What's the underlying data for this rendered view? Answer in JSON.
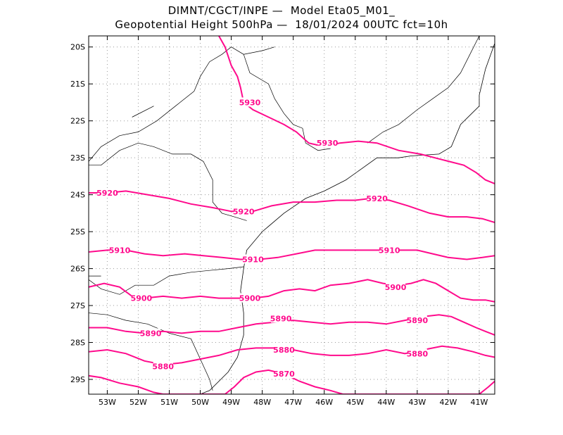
{
  "header": {
    "line1": "DIMNT/CGCT/INPE —  Model Eta05_M01_",
    "line2": "Geopotential Height 500hPa —  18/01/2024 00UTC fct=10h"
  },
  "map": {
    "lon_min": -53.6,
    "lon_max": -40.5,
    "lat_min": -29.4,
    "lat_max": -19.7,
    "lon_ticks": [
      {
        "value": -53,
        "label": "53W"
      },
      {
        "value": -52,
        "label": "52W"
      },
      {
        "value": -51,
        "label": "51W"
      },
      {
        "value": -50,
        "label": "50W"
      },
      {
        "value": -49,
        "label": "49W"
      },
      {
        "value": -48,
        "label": "48W"
      },
      {
        "value": -47,
        "label": "47W"
      },
      {
        "value": -46,
        "label": "46W"
      },
      {
        "value": -45,
        "label": "45W"
      },
      {
        "value": -44,
        "label": "44W"
      },
      {
        "value": -43,
        "label": "43W"
      },
      {
        "value": -42,
        "label": "42W"
      },
      {
        "value": -41,
        "label": "41W"
      }
    ],
    "lat_ticks": [
      {
        "value": -20,
        "label": "20S"
      },
      {
        "value": -21,
        "label": "21S"
      },
      {
        "value": -22,
        "label": "22S"
      },
      {
        "value": -23,
        "label": "23S"
      },
      {
        "value": -24,
        "label": "24S"
      },
      {
        "value": -25,
        "label": "25S"
      },
      {
        "value": -26,
        "label": "26S"
      },
      {
        "value": -27,
        "label": "27S"
      },
      {
        "value": -28,
        "label": "28S"
      },
      {
        "value": -29,
        "label": "29S"
      }
    ],
    "contour_color": "#ff0a8c",
    "coast_color": "#000000",
    "grid": true,
    "contours": [
      {
        "level": 5930,
        "label": "5930",
        "labels_at": [
          [
            -48.4,
            -21.5
          ],
          [
            -45.9,
            -22.6
          ]
        ],
        "points": [
          [
            -49.4,
            -19.7
          ],
          [
            -49.2,
            -20.0
          ],
          [
            -49.0,
            -20.5
          ],
          [
            -48.8,
            -20.8
          ],
          [
            -48.7,
            -21.1
          ],
          [
            -48.6,
            -21.5
          ],
          [
            -48.3,
            -21.7
          ],
          [
            -47.8,
            -21.9
          ],
          [
            -47.3,
            -22.1
          ],
          [
            -46.9,
            -22.3
          ],
          [
            -46.5,
            -22.6
          ],
          [
            -46.0,
            -22.7
          ],
          [
            -45.5,
            -22.6
          ],
          [
            -44.9,
            -22.55
          ],
          [
            -44.3,
            -22.6
          ],
          [
            -43.6,
            -22.8
          ],
          [
            -42.9,
            -22.9
          ],
          [
            -42.2,
            -23.05
          ],
          [
            -41.5,
            -23.2
          ],
          [
            -41.1,
            -23.4
          ],
          [
            -40.8,
            -23.6
          ],
          [
            -40.5,
            -23.7
          ]
        ]
      },
      {
        "level": 5920,
        "label": "5920",
        "labels_at": [
          [
            -53.0,
            -23.95
          ],
          [
            -48.6,
            -24.45
          ],
          [
            -44.3,
            -24.1
          ]
        ],
        "points": [
          [
            -53.6,
            -23.95
          ],
          [
            -53.0,
            -23.95
          ],
          [
            -52.4,
            -23.9
          ],
          [
            -51.7,
            -24.0
          ],
          [
            -51.0,
            -24.1
          ],
          [
            -50.3,
            -24.25
          ],
          [
            -49.6,
            -24.35
          ],
          [
            -49.0,
            -24.45
          ],
          [
            -48.3,
            -24.45
          ],
          [
            -47.7,
            -24.3
          ],
          [
            -47.0,
            -24.2
          ],
          [
            -46.3,
            -24.2
          ],
          [
            -45.6,
            -24.15
          ],
          [
            -45.0,
            -24.15
          ],
          [
            -44.5,
            -24.1
          ],
          [
            -43.9,
            -24.15
          ],
          [
            -43.3,
            -24.3
          ],
          [
            -42.6,
            -24.5
          ],
          [
            -42.0,
            -24.6
          ],
          [
            -41.4,
            -24.6
          ],
          [
            -40.9,
            -24.65
          ],
          [
            -40.5,
            -24.75
          ]
        ]
      },
      {
        "level": 5910,
        "label": "5910",
        "labels_at": [
          [
            -52.6,
            -25.5
          ],
          [
            -48.3,
            -25.75
          ],
          [
            -43.9,
            -25.5
          ]
        ],
        "points": [
          [
            -53.6,
            -25.55
          ],
          [
            -53.0,
            -25.5
          ],
          [
            -52.4,
            -25.5
          ],
          [
            -51.8,
            -25.6
          ],
          [
            -51.2,
            -25.65
          ],
          [
            -50.5,
            -25.6
          ],
          [
            -49.9,
            -25.65
          ],
          [
            -49.3,
            -25.7
          ],
          [
            -48.7,
            -25.75
          ],
          [
            -48.1,
            -25.75
          ],
          [
            -47.5,
            -25.7
          ],
          [
            -46.9,
            -25.6
          ],
          [
            -46.3,
            -25.5
          ],
          [
            -45.6,
            -25.5
          ],
          [
            -45.0,
            -25.5
          ],
          [
            -44.3,
            -25.5
          ],
          [
            -43.6,
            -25.5
          ],
          [
            -43.0,
            -25.5
          ],
          [
            -42.5,
            -25.6
          ],
          [
            -42.0,
            -25.7
          ],
          [
            -41.4,
            -25.75
          ],
          [
            -40.9,
            -25.7
          ],
          [
            -40.5,
            -25.65
          ]
        ]
      },
      {
        "level": 5900,
        "label": "5900",
        "labels_at": [
          [
            -51.9,
            -26.8
          ],
          [
            -48.4,
            -26.8
          ],
          [
            -43.7,
            -26.5
          ]
        ],
        "points": [
          [
            -53.6,
            -26.5
          ],
          [
            -53.1,
            -26.4
          ],
          [
            -52.6,
            -26.5
          ],
          [
            -52.2,
            -26.75
          ],
          [
            -51.8,
            -26.8
          ],
          [
            -51.2,
            -26.75
          ],
          [
            -50.6,
            -26.8
          ],
          [
            -50.0,
            -26.75
          ],
          [
            -49.4,
            -26.8
          ],
          [
            -48.8,
            -26.8
          ],
          [
            -48.3,
            -26.8
          ],
          [
            -47.8,
            -26.75
          ],
          [
            -47.3,
            -26.6
          ],
          [
            -46.8,
            -26.55
          ],
          [
            -46.3,
            -26.6
          ],
          [
            -45.8,
            -26.45
          ],
          [
            -45.2,
            -26.4
          ],
          [
            -44.6,
            -26.3
          ],
          [
            -44.1,
            -26.4
          ],
          [
            -43.6,
            -26.45
          ],
          [
            -43.2,
            -26.4
          ],
          [
            -42.8,
            -26.3
          ],
          [
            -42.4,
            -26.4
          ],
          [
            -42.0,
            -26.6
          ],
          [
            -41.6,
            -26.8
          ],
          [
            -41.2,
            -26.85
          ],
          [
            -40.8,
            -26.85
          ],
          [
            -40.5,
            -26.9
          ]
        ]
      },
      {
        "level": 5890,
        "label": "5890",
        "labels_at": [
          [
            -51.6,
            -27.75
          ],
          [
            -47.4,
            -27.35
          ],
          [
            -43.0,
            -27.4
          ]
        ],
        "points": [
          [
            -53.6,
            -27.6
          ],
          [
            -53.0,
            -27.6
          ],
          [
            -52.4,
            -27.7
          ],
          [
            -51.8,
            -27.75
          ],
          [
            -51.2,
            -27.7
          ],
          [
            -50.6,
            -27.75
          ],
          [
            -50.0,
            -27.7
          ],
          [
            -49.4,
            -27.7
          ],
          [
            -48.8,
            -27.6
          ],
          [
            -48.2,
            -27.5
          ],
          [
            -47.6,
            -27.45
          ],
          [
            -47.0,
            -27.4
          ],
          [
            -46.4,
            -27.45
          ],
          [
            -45.8,
            -27.5
          ],
          [
            -45.2,
            -27.45
          ],
          [
            -44.6,
            -27.45
          ],
          [
            -44.0,
            -27.5
          ],
          [
            -43.4,
            -27.4
          ],
          [
            -42.8,
            -27.3
          ],
          [
            -42.3,
            -27.25
          ],
          [
            -41.9,
            -27.3
          ],
          [
            -41.5,
            -27.45
          ],
          [
            -41.1,
            -27.6
          ],
          [
            -40.8,
            -27.7
          ],
          [
            -40.5,
            -27.8
          ]
        ]
      },
      {
        "level": 5880,
        "label": "5880",
        "labels_at": [
          [
            -51.2,
            -28.65
          ],
          [
            -47.3,
            -28.2
          ],
          [
            -43.0,
            -28.3
          ]
        ],
        "points": [
          [
            -53.6,
            -28.25
          ],
          [
            -53.0,
            -28.2
          ],
          [
            -52.4,
            -28.3
          ],
          [
            -51.8,
            -28.5
          ],
          [
            -51.2,
            -28.6
          ],
          [
            -50.6,
            -28.55
          ],
          [
            -50.0,
            -28.45
          ],
          [
            -49.4,
            -28.35
          ],
          [
            -48.8,
            -28.2
          ],
          [
            -48.2,
            -28.15
          ],
          [
            -47.6,
            -28.15
          ],
          [
            -47.0,
            -28.2
          ],
          [
            -46.4,
            -28.3
          ],
          [
            -45.8,
            -28.35
          ],
          [
            -45.2,
            -28.35
          ],
          [
            -44.6,
            -28.3
          ],
          [
            -44.0,
            -28.2
          ],
          [
            -43.4,
            -28.3
          ],
          [
            -42.8,
            -28.2
          ],
          [
            -42.2,
            -28.1
          ],
          [
            -41.7,
            -28.15
          ],
          [
            -41.2,
            -28.25
          ],
          [
            -40.8,
            -28.35
          ],
          [
            -40.5,
            -28.4
          ]
        ]
      },
      {
        "level": 5870,
        "label": "5870",
        "labels_at": [
          [
            -47.3,
            -28.85
          ]
        ],
        "points": [
          [
            -53.6,
            -28.9
          ],
          [
            -53.2,
            -28.95
          ],
          [
            -52.6,
            -29.1
          ],
          [
            -52.0,
            -29.2
          ],
          [
            -51.5,
            -29.35
          ],
          [
            -51.2,
            -29.4
          ],
          [
            -49.2,
            -29.4
          ],
          [
            -48.9,
            -29.2
          ],
          [
            -48.6,
            -28.95
          ],
          [
            -48.2,
            -28.8
          ],
          [
            -47.8,
            -28.75
          ],
          [
            -47.3,
            -28.85
          ],
          [
            -46.8,
            -29.05
          ],
          [
            -46.3,
            -29.2
          ],
          [
            -45.8,
            -29.3
          ],
          [
            -45.4,
            -29.4
          ],
          [
            -41.0,
            -29.4
          ],
          [
            -40.7,
            -29.2
          ],
          [
            -40.5,
            -29.05
          ]
        ]
      }
    ],
    "boundaries": [
      [
        [
          -53.6,
          -23.1
        ],
        [
          -53.2,
          -22.7
        ],
        [
          -52.6,
          -22.4
        ],
        [
          -52.0,
          -22.3
        ],
        [
          -51.4,
          -22.0
        ],
        [
          -50.8,
          -21.6
        ],
        [
          -50.2,
          -21.2
        ],
        [
          -50.0,
          -20.8
        ],
        [
          -49.7,
          -20.4
        ],
        [
          -49.3,
          -20.2
        ],
        [
          -49.0,
          -20.0
        ],
        [
          -48.6,
          -20.2
        ],
        [
          -48.0,
          -20.1
        ],
        [
          -47.6,
          -20.0
        ]
      ],
      [
        [
          -48.6,
          -20.2
        ],
        [
          -48.4,
          -20.7
        ],
        [
          -47.8,
          -21.0
        ],
        [
          -47.6,
          -21.4
        ],
        [
          -47.3,
          -21.8
        ],
        [
          -47.0,
          -22.1
        ],
        [
          -46.7,
          -22.2
        ],
        [
          -46.6,
          -22.6
        ],
        [
          -46.2,
          -22.8
        ],
        [
          -45.8,
          -22.75
        ]
      ],
      [
        [
          -53.6,
          -23.2
        ],
        [
          -53.2,
          -23.2
        ],
        [
          -52.6,
          -22.8
        ],
        [
          -52.0,
          -22.6
        ],
        [
          -51.5,
          -22.7
        ],
        [
          -50.9,
          -22.9
        ],
        [
          -50.3,
          -22.9
        ],
        [
          -49.9,
          -23.1
        ],
        [
          -49.6,
          -23.6
        ],
        [
          -49.6,
          -24.2
        ],
        [
          -49.3,
          -24.5
        ],
        [
          -48.9,
          -24.6
        ],
        [
          -48.5,
          -24.7
        ]
      ],
      [
        [
          -53.6,
          -26.3
        ],
        [
          -53.2,
          -26.55
        ],
        [
          -52.6,
          -26.7
        ],
        [
          -52.1,
          -26.45
        ],
        [
          -51.5,
          -26.45
        ],
        [
          -51.0,
          -26.2
        ],
        [
          -50.3,
          -26.1
        ],
        [
          -49.7,
          -26.05
        ],
        [
          -49.1,
          -26.0
        ],
        [
          -48.6,
          -25.95
        ]
      ],
      [
        [
          -53.6,
          -27.2
        ],
        [
          -53.0,
          -27.25
        ],
        [
          -52.4,
          -27.4
        ],
        [
          -51.7,
          -27.5
        ],
        [
          -51.0,
          -27.75
        ],
        [
          -50.3,
          -27.9
        ],
        [
          -49.7,
          -29.0
        ],
        [
          -49.6,
          -29.3
        ]
      ],
      [
        [
          -44.6,
          -22.6
        ],
        [
          -44.1,
          -22.3
        ],
        [
          -43.6,
          -22.1
        ],
        [
          -43.0,
          -21.7
        ],
        [
          -42.5,
          -21.4
        ],
        [
          -42.0,
          -21.1
        ],
        [
          -41.6,
          -20.7
        ],
        [
          -41.3,
          -20.2
        ],
        [
          -41.0,
          -19.7
        ]
      ]
    ],
    "coastlines": [
      [
        [
          -40.5,
          -19.9
        ],
        [
          -40.8,
          -20.6
        ],
        [
          -41.0,
          -21.3
        ],
        [
          -41.0,
          -21.6
        ],
        [
          -41.6,
          -22.1
        ],
        [
          -41.9,
          -22.7
        ],
        [
          -42.3,
          -22.9
        ],
        [
          -43.2,
          -22.95
        ],
        [
          -43.6,
          -23.0
        ],
        [
          -44.3,
          -23.0
        ],
        [
          -44.8,
          -23.3
        ],
        [
          -45.3,
          -23.6
        ],
        [
          -46.0,
          -23.9
        ],
        [
          -46.6,
          -24.1
        ],
        [
          -47.3,
          -24.5
        ],
        [
          -48.0,
          -25.0
        ],
        [
          -48.5,
          -25.5
        ],
        [
          -48.6,
          -26.0
        ],
        [
          -48.7,
          -26.6
        ],
        [
          -48.6,
          -27.2
        ],
        [
          -48.6,
          -27.8
        ],
        [
          -48.8,
          -28.4
        ],
        [
          -49.1,
          -28.8
        ],
        [
          -49.7,
          -29.3
        ],
        [
          -50.0,
          -29.4
        ]
      ],
      [
        [
          -53.6,
          -26.2
        ],
        [
          -53.2,
          -26.2
        ]
      ],
      [
        [
          -52.2,
          -21.9
        ],
        [
          -51.5,
          -21.6
        ]
      ]
    ]
  }
}
